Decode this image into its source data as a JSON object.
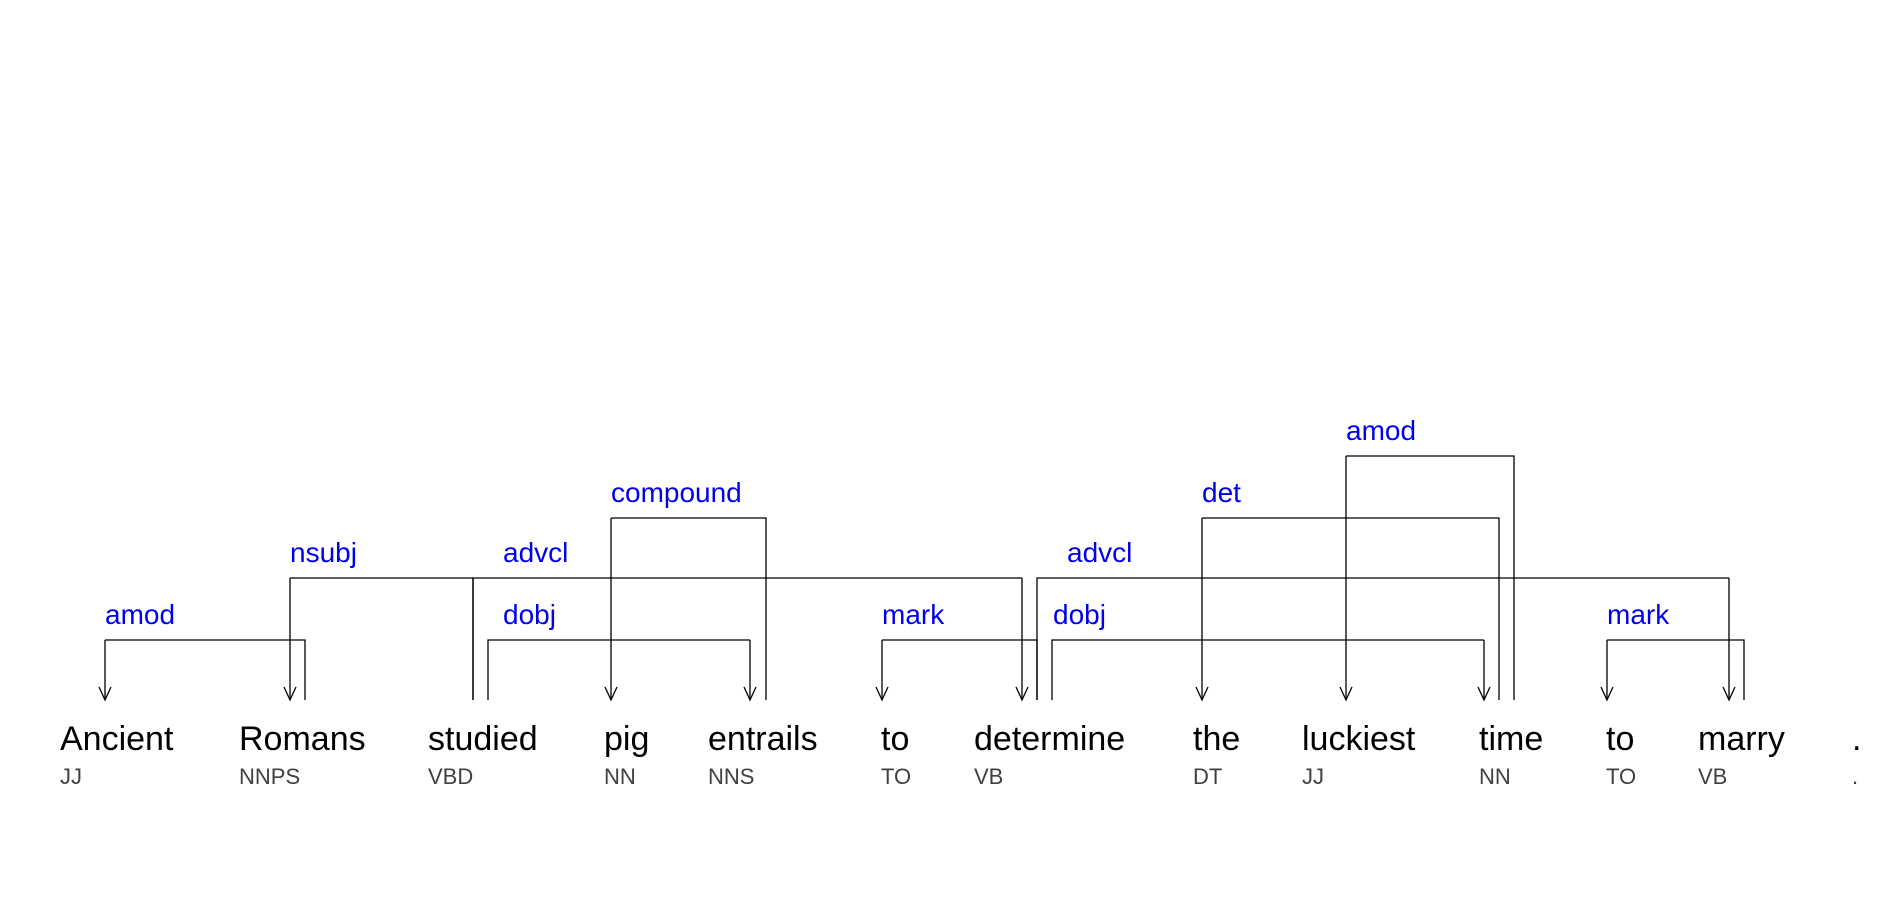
{
  "tokens": [
    {
      "word": "Ancient",
      "tag": "JJ"
    },
    {
      "word": "Romans",
      "tag": "NNPS"
    },
    {
      "word": "studied",
      "tag": "VBD"
    },
    {
      "word": "pig",
      "tag": "NN"
    },
    {
      "word": "entrails",
      "tag": "NNS"
    },
    {
      "word": "to",
      "tag": "TO"
    },
    {
      "word": "determine",
      "tag": "VB"
    },
    {
      "word": "the",
      "tag": "DT"
    },
    {
      "word": "luckiest",
      "tag": "JJ"
    },
    {
      "word": "time",
      "tag": "NN"
    },
    {
      "word": "to",
      "tag": "TO"
    },
    {
      "word": "marry",
      "tag": "VB"
    },
    {
      "word": ".",
      "tag": "."
    }
  ],
  "arcs": [
    {
      "label": "amod",
      "head": 1,
      "dep": 0
    },
    {
      "label": "nsubj",
      "head": 2,
      "dep": 1
    },
    {
      "label": "dobj",
      "head": 2,
      "dep": 4
    },
    {
      "label": "advcl",
      "head": 2,
      "dep": 6
    },
    {
      "label": "compound",
      "head": 4,
      "dep": 3
    },
    {
      "label": "mark",
      "head": 6,
      "dep": 5
    },
    {
      "label": "dobj",
      "head": 6,
      "dep": 9
    },
    {
      "label": "advcl",
      "head": 6,
      "dep": 11
    },
    {
      "label": "det",
      "head": 9,
      "dep": 7
    },
    {
      "label": "amod",
      "head": 9,
      "dep": 8
    },
    {
      "label": "mark",
      "head": 11,
      "dep": 10
    }
  ],
  "colors": {
    "relation_label": "#0000ee",
    "word": "#000000",
    "tag": "#404040",
    "arc": "#000000"
  }
}
